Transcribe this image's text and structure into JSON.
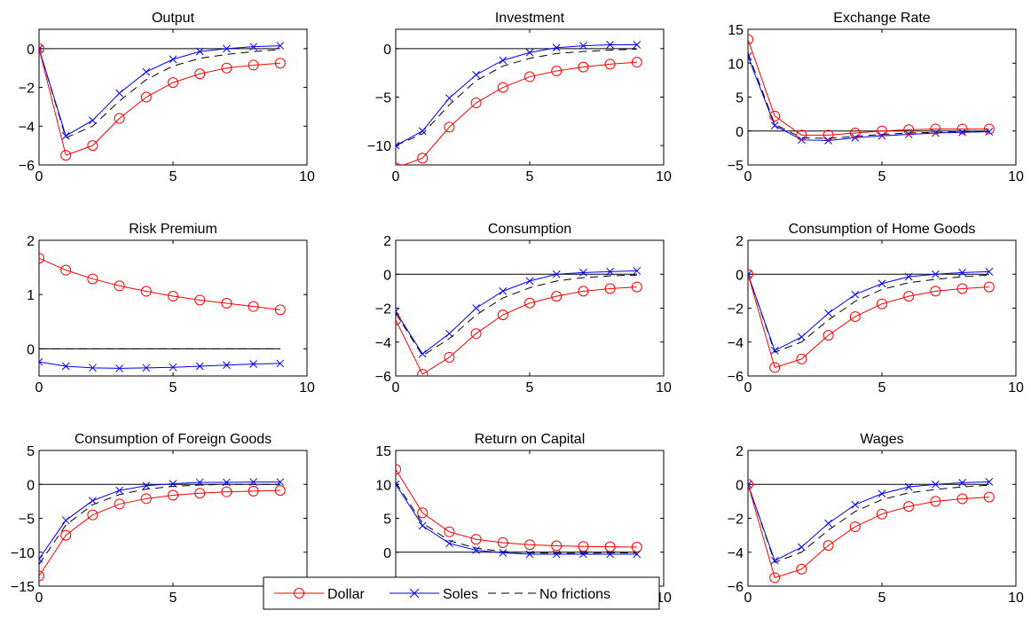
{
  "legend": {
    "items": [
      {
        "label": "Dollar",
        "color": "#ff0000",
        "marker": "circle",
        "dash": "solid"
      },
      {
        "label": "Soles",
        "color": "#0000ff",
        "marker": "x",
        "dash": "solid"
      },
      {
        "label": "No frictions",
        "color": "#000000",
        "marker": "none",
        "dash": "dashed"
      }
    ],
    "placement": "bottom-center"
  },
  "chart_data": [
    {
      "type": "line",
      "title": "Output",
      "xlim": [
        0,
        10
      ],
      "ylim": [
        -6,
        1
      ],
      "xticks": [
        0,
        5,
        10
      ],
      "yticks": [
        -6,
        -4,
        -2,
        0
      ],
      "x": [
        0,
        1,
        2,
        3,
        4,
        5,
        6,
        7,
        8,
        9
      ],
      "series": [
        {
          "name": "Dollar",
          "values": [
            0,
            -5.5,
            -5.0,
            -3.6,
            -2.5,
            -1.75,
            -1.3,
            -1.0,
            -0.85,
            -0.75
          ]
        },
        {
          "name": "Soles",
          "values": [
            0,
            -4.5,
            -3.7,
            -2.3,
            -1.2,
            -0.55,
            -0.15,
            0.0,
            0.1,
            0.15
          ]
        },
        {
          "name": "No frictions",
          "values": [
            0,
            -4.6,
            -4.0,
            -2.7,
            -1.6,
            -0.9,
            -0.5,
            -0.3,
            -0.15,
            -0.05
          ]
        }
      ]
    },
    {
      "type": "line",
      "title": "Investment",
      "xlim": [
        0,
        10
      ],
      "ylim": [
        -12,
        2
      ],
      "xticks": [
        0,
        5,
        10
      ],
      "yticks": [
        -10,
        -5,
        0
      ],
      "x": [
        0,
        1,
        2,
        3,
        4,
        5,
        6,
        7,
        8,
        9
      ],
      "series": [
        {
          "name": "Dollar",
          "values": [
            -12.3,
            -11.3,
            -8.1,
            -5.6,
            -4.0,
            -2.9,
            -2.3,
            -1.9,
            -1.6,
            -1.4
          ]
        },
        {
          "name": "Soles",
          "values": [
            -10.0,
            -8.5,
            -5.1,
            -2.7,
            -1.2,
            -0.4,
            0.1,
            0.3,
            0.4,
            0.4
          ]
        },
        {
          "name": "No frictions",
          "values": [
            -10.0,
            -8.8,
            -5.8,
            -3.3,
            -1.8,
            -1.0,
            -0.5,
            -0.3,
            -0.15,
            -0.05
          ]
        }
      ]
    },
    {
      "type": "line",
      "title": "Exchange Rate",
      "xlim": [
        0,
        10
      ],
      "ylim": [
        -5,
        15
      ],
      "xticks": [
        0,
        5,
        10
      ],
      "yticks": [
        -5,
        0,
        5,
        10,
        15
      ],
      "x": [
        0,
        1,
        2,
        3,
        4,
        5,
        6,
        7,
        8,
        9
      ],
      "series": [
        {
          "name": "Dollar",
          "values": [
            13.5,
            2.2,
            -0.6,
            -0.6,
            -0.3,
            0.0,
            0.2,
            0.3,
            0.3,
            0.3
          ]
        },
        {
          "name": "Soles",
          "values": [
            11.0,
            0.8,
            -1.3,
            -1.4,
            -1.0,
            -0.7,
            -0.5,
            -0.3,
            -0.2,
            -0.1
          ]
        },
        {
          "name": "No frictions",
          "values": [
            11.5,
            1.0,
            -1.0,
            -1.1,
            -0.8,
            -0.5,
            -0.3,
            -0.2,
            -0.1,
            -0.05
          ]
        }
      ]
    },
    {
      "type": "line",
      "title": "Risk Premium",
      "xlim": [
        0,
        10
      ],
      "ylim": [
        -0.5,
        2
      ],
      "xticks": [
        0,
        5,
        10
      ],
      "yticks": [
        0,
        1,
        2
      ],
      "x": [
        0,
        1,
        2,
        3,
        4,
        5,
        6,
        7,
        8,
        9
      ],
      "series": [
        {
          "name": "Dollar",
          "values": [
            1.67,
            1.45,
            1.29,
            1.16,
            1.06,
            0.97,
            0.9,
            0.84,
            0.78,
            0.72
          ]
        },
        {
          "name": "Soles",
          "values": [
            -0.24,
            -0.32,
            -0.35,
            -0.36,
            -0.35,
            -0.34,
            -0.32,
            -0.3,
            -0.28,
            -0.27
          ]
        },
        {
          "name": "No frictions",
          "values": [
            0,
            0,
            0,
            0,
            0,
            0,
            0,
            0,
            0,
            0
          ]
        }
      ]
    },
    {
      "type": "line",
      "title": "Consumption",
      "xlim": [
        0,
        10
      ],
      "ylim": [
        -6,
        2
      ],
      "xticks": [
        0,
        5,
        10
      ],
      "yticks": [
        -6,
        -4,
        -2,
        0,
        2
      ],
      "x": [
        0,
        1,
        2,
        3,
        4,
        5,
        6,
        7,
        8,
        9
      ],
      "series": [
        {
          "name": "Dollar",
          "values": [
            -2.7,
            -5.9,
            -4.9,
            -3.5,
            -2.4,
            -1.7,
            -1.3,
            -1.0,
            -0.85,
            -0.75
          ]
        },
        {
          "name": "Soles",
          "values": [
            -2.2,
            -4.7,
            -3.5,
            -2.0,
            -1.0,
            -0.4,
            0.0,
            0.1,
            0.15,
            0.2
          ]
        },
        {
          "name": "No frictions",
          "values": [
            -2.3,
            -4.8,
            -3.8,
            -2.4,
            -1.4,
            -0.8,
            -0.4,
            -0.2,
            -0.1,
            -0.05
          ]
        }
      ]
    },
    {
      "type": "line",
      "title": "Consumption of Home Goods",
      "xlim": [
        0,
        10
      ],
      "ylim": [
        -6,
        2
      ],
      "xticks": [
        0,
        5,
        10
      ],
      "yticks": [
        -6,
        -4,
        -2,
        0,
        2
      ],
      "x": [
        0,
        1,
        2,
        3,
        4,
        5,
        6,
        7,
        8,
        9
      ],
      "series": [
        {
          "name": "Dollar",
          "values": [
            0,
            -5.5,
            -5.0,
            -3.6,
            -2.5,
            -1.75,
            -1.3,
            -1.0,
            -0.85,
            -0.75
          ]
        },
        {
          "name": "Soles",
          "values": [
            0,
            -4.5,
            -3.7,
            -2.3,
            -1.2,
            -0.55,
            -0.15,
            0.0,
            0.1,
            0.15
          ]
        },
        {
          "name": "No frictions",
          "values": [
            0,
            -4.6,
            -4.0,
            -2.7,
            -1.6,
            -0.9,
            -0.5,
            -0.3,
            -0.15,
            -0.05
          ]
        }
      ]
    },
    {
      "type": "line",
      "title": "Consumption of Foreign Goods",
      "xlim": [
        0,
        10
      ],
      "ylim": [
        -15,
        5
      ],
      "xticks": [
        0,
        5,
        10
      ],
      "yticks": [
        -15,
        -10,
        -5,
        0,
        5
      ],
      "x": [
        0,
        1,
        2,
        3,
        4,
        5,
        6,
        7,
        8,
        9
      ],
      "series": [
        {
          "name": "Dollar",
          "values": [
            -13.5,
            -7.5,
            -4.5,
            -2.9,
            -2.1,
            -1.6,
            -1.3,
            -1.1,
            -1.0,
            -0.9
          ]
        },
        {
          "name": "Soles",
          "values": [
            -11.0,
            -5.3,
            -2.4,
            -0.9,
            -0.2,
            0.1,
            0.3,
            0.3,
            0.35,
            0.35
          ]
        },
        {
          "name": "No frictions",
          "values": [
            -11.8,
            -6.0,
            -3.0,
            -1.5,
            -0.7,
            -0.3,
            -0.1,
            0.0,
            0.0,
            0.0
          ]
        }
      ]
    },
    {
      "type": "line",
      "title": "Return on Capital",
      "xlim": [
        0,
        10
      ],
      "ylim": [
        -5,
        15
      ],
      "xticks": [
        0,
        5,
        10
      ],
      "yticks": [
        -5,
        0,
        5,
        10,
        15
      ],
      "x": [
        0,
        1,
        2,
        3,
        4,
        5,
        6,
        7,
        8,
        9
      ],
      "series": [
        {
          "name": "Dollar",
          "values": [
            12.2,
            5.8,
            3.0,
            1.9,
            1.4,
            1.1,
            0.95,
            0.85,
            0.8,
            0.75
          ]
        },
        {
          "name": "Soles",
          "values": [
            10.0,
            3.9,
            1.3,
            0.3,
            -0.1,
            -0.3,
            -0.3,
            -0.3,
            -0.3,
            -0.3
          ]
        },
        {
          "name": "No frictions",
          "values": [
            10.3,
            4.3,
            1.7,
            0.6,
            0.1,
            -0.1,
            -0.15,
            -0.15,
            -0.1,
            -0.1
          ]
        }
      ]
    },
    {
      "type": "line",
      "title": "Wages",
      "xlim": [
        0,
        10
      ],
      "ylim": [
        -6,
        2
      ],
      "xticks": [
        0,
        5,
        10
      ],
      "yticks": [
        -6,
        -4,
        -2,
        0,
        2
      ],
      "x": [
        0,
        1,
        2,
        3,
        4,
        5,
        6,
        7,
        8,
        9
      ],
      "series": [
        {
          "name": "Dollar",
          "values": [
            0,
            -5.5,
            -5.0,
            -3.6,
            -2.5,
            -1.75,
            -1.3,
            -1.0,
            -0.85,
            -0.75
          ]
        },
        {
          "name": "Soles",
          "values": [
            0,
            -4.5,
            -3.7,
            -2.3,
            -1.2,
            -0.55,
            -0.15,
            0.0,
            0.1,
            0.15
          ]
        },
        {
          "name": "No frictions",
          "values": [
            0,
            -4.6,
            -4.0,
            -2.7,
            -1.6,
            -0.9,
            -0.5,
            -0.3,
            -0.15,
            -0.05
          ]
        }
      ]
    }
  ]
}
